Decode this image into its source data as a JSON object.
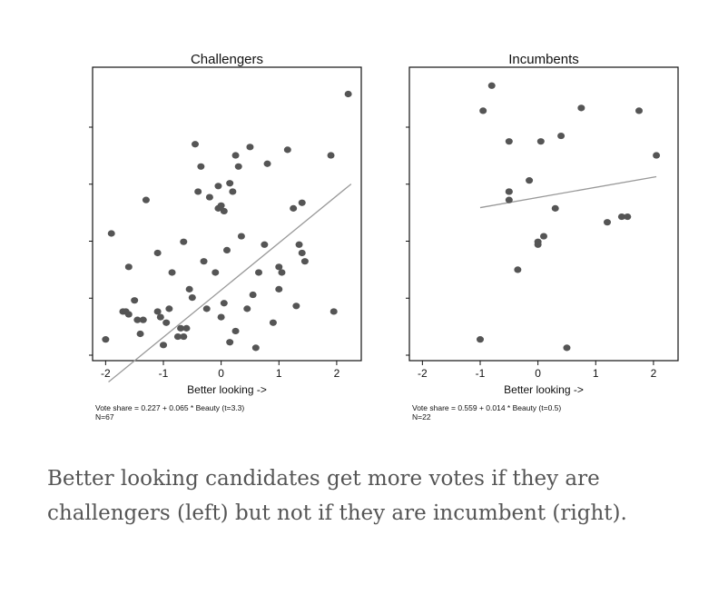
{
  "caption": "Better looking candidates get more votes if they are challengers (left) but not if they are incumbent (right).",
  "chart_data": [
    {
      "type": "scatter",
      "title": "Challengers",
      "xlabel": "Better looking ->",
      "ylabel": "",
      "xlim": [
        -2.1,
        2.3
      ],
      "ylim": [
        0,
        1
      ],
      "x_ticks": [
        "-2",
        "-1",
        "0",
        "1",
        "2"
      ],
      "fit": {
        "intercept": 0.227,
        "slope": 0.065,
        "x_range": [
          -1.95,
          2.25
        ]
      },
      "notes": [
        "Vote share = 0.227 + 0.065 * Beauty (t=3.3)",
        "N=67"
      ],
      "point_color": "#555555",
      "line_color": "#999999",
      "series": [
        {
          "x": [
            -2.0,
            -1.9,
            -1.7,
            -1.65,
            -1.6,
            -1.5,
            -1.45,
            -1.4,
            -1.3,
            -1.1,
            -1.1,
            -1.05,
            -1.0,
            -0.9,
            -0.85,
            -0.7,
            -0.65,
            -0.6,
            -0.5,
            -0.45,
            -0.4,
            -0.35,
            -0.3,
            -0.2,
            -0.1,
            -0.05,
            0.0,
            0.05,
            0.1,
            0.15,
            0.2,
            0.25,
            0.3,
            0.45,
            0.5,
            0.55,
            0.6,
            0.65,
            0.75,
            0.8,
            0.9,
            1.0,
            1.05,
            1.15,
            1.25,
            1.3,
            1.35,
            1.4,
            1.4,
            1.45,
            1.95,
            1.9,
            2.2,
            -0.65,
            -0.55,
            -0.95,
            0.0,
            0.35,
            -1.35,
            -0.75,
            -1.6,
            -0.25,
            0.15,
            0.05,
            -0.05,
            0.25,
            1.0
          ],
          "y": [
            0.05,
            0.43,
            0.15,
            0.15,
            0.14,
            0.19,
            0.12,
            0.07,
            0.55,
            0.36,
            0.15,
            0.13,
            0.03,
            0.16,
            0.29,
            0.09,
            0.06,
            0.09,
            0.2,
            0.75,
            0.58,
            0.67,
            0.33,
            0.56,
            0.29,
            0.52,
            0.13,
            0.51,
            0.37,
            0.61,
            0.58,
            0.71,
            0.67,
            0.16,
            0.74,
            0.21,
            0.02,
            0.29,
            0.39,
            0.68,
            0.11,
            0.23,
            0.29,
            0.73,
            0.52,
            0.17,
            0.39,
            0.36,
            0.54,
            0.33,
            0.15,
            0.71,
            0.93,
            0.4,
            0.23,
            0.11,
            0.53,
            0.42,
            0.12,
            0.06,
            0.31,
            0.16,
            0.04,
            0.18,
            0.6,
            0.08,
            0.31
          ]
        }
      ]
    },
    {
      "type": "scatter",
      "title": "Incumbents",
      "xlabel": "Better looking ->",
      "ylabel": "",
      "xlim": [
        -2.1,
        2.3
      ],
      "ylim": [
        0,
        1
      ],
      "x_ticks": [
        "-2",
        "-1",
        "0",
        "1",
        "2"
      ],
      "fit": {
        "intercept": 0.559,
        "slope": 0.014,
        "x_range": [
          -1.0,
          2.05
        ]
      },
      "notes": [
        "Vote share = 0.559 + 0.014 * Beauty (t=0.5)",
        "N=22"
      ],
      "point_color": "#555555",
      "line_color": "#999999",
      "series": [
        {
          "x": [
            -1.0,
            -0.95,
            -0.8,
            -0.5,
            -0.5,
            -0.5,
            -0.35,
            -0.15,
            0.0,
            0.05,
            0.0,
            0.1,
            0.3,
            0.4,
            0.5,
            0.75,
            1.2,
            1.45,
            1.55,
            1.75,
            2.05,
            -0.5
          ],
          "y": [
            0.05,
            0.87,
            0.96,
            0.76,
            0.58,
            0.55,
            0.3,
            0.62,
            0.4,
            0.76,
            0.39,
            0.42,
            0.52,
            0.78,
            0.02,
            0.88,
            0.47,
            0.49,
            0.49,
            0.87,
            0.71,
            0.58
          ]
        }
      ]
    }
  ]
}
